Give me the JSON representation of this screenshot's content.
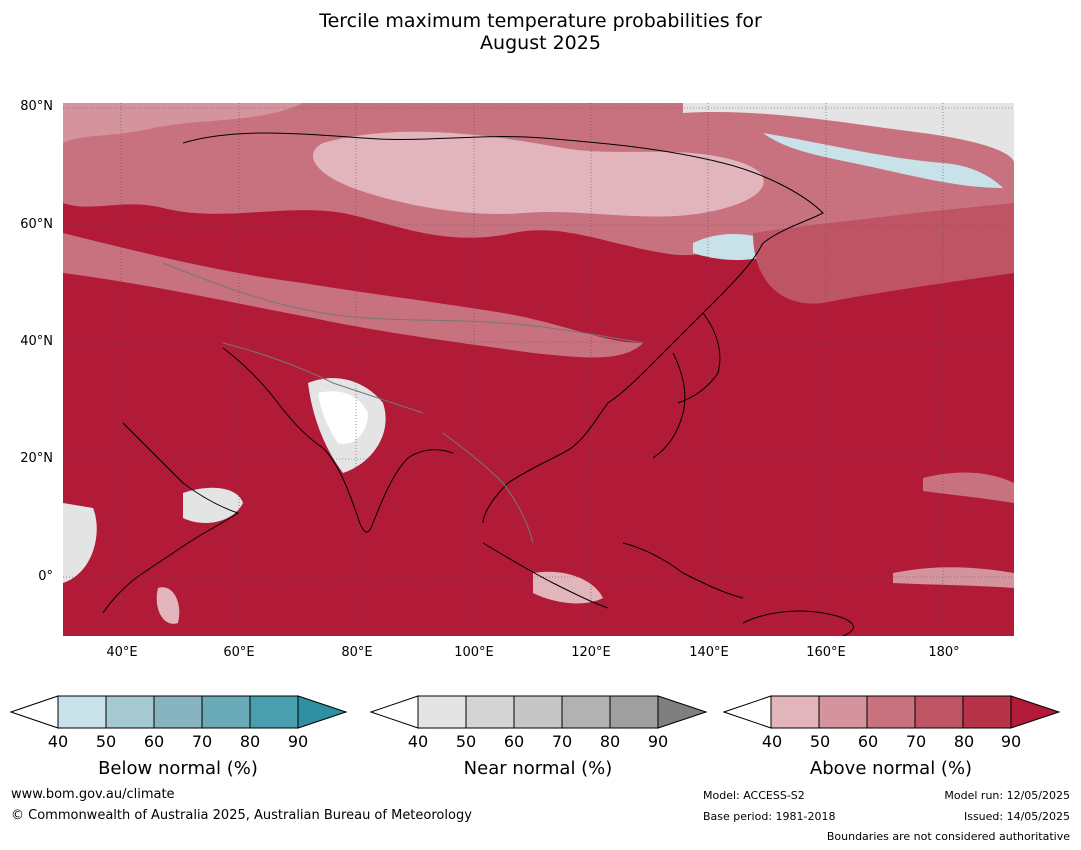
{
  "title_line1": "Tercile maximum temperature probabilities for",
  "title_line2": "August 2025",
  "lat_labels": [
    "80°N",
    "60°N",
    "40°N",
    "20°N",
    "0°"
  ],
  "lon_labels": [
    "40°E",
    "60°E",
    "80°E",
    "100°E",
    "120°E",
    "140°E",
    "160°E",
    "180°"
  ],
  "colorbars": [
    {
      "name": "Below normal (%)",
      "ticks": [
        "40",
        "50",
        "60",
        "70",
        "80",
        "90"
      ],
      "colors": [
        "#ffffff",
        "#c9e1e8",
        "#a6c8d0",
        "#87b4bf",
        "#6aa9b6",
        "#4a9fae",
        "#2f8fa3"
      ]
    },
    {
      "name": "Near normal (%)",
      "ticks": [
        "40",
        "50",
        "60",
        "70",
        "80",
        "90"
      ],
      "colors": [
        "#ffffff",
        "#e4e4e4",
        "#d4d4d4",
        "#c6c6c6",
        "#b2b2b2",
        "#9f9f9f",
        "#7f7f7f"
      ]
    },
    {
      "name": "Above normal (%)",
      "ticks": [
        "40",
        "50",
        "60",
        "70",
        "80",
        "90"
      ],
      "colors": [
        "#ffffff",
        "#e2b5bd",
        "#d4949d",
        "#c8727f",
        "#bf5464",
        "#b63348",
        "#b21b37"
      ]
    }
  ],
  "footer": {
    "url": "www.bom.gov.au/climate",
    "copyright": "© Commonwealth of Australia 2025, Australian Bureau of Meteorology",
    "model": "Model: ACCESS-S2",
    "base_period": "Base period: 1981-2018",
    "model_run": "Model run: 12/05/2025",
    "issued": "Issued: 14/05/2025",
    "disclaimer": "Boundaries are not considered authoritative"
  }
}
